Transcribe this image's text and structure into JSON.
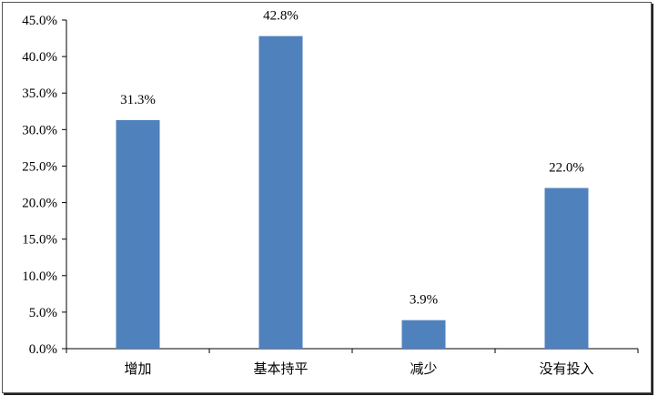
{
  "chart_data": {
    "type": "bar",
    "categories": [
      "增加",
      "基本持平",
      "减少",
      "没有投入"
    ],
    "values": [
      31.3,
      42.8,
      3.9,
      22.0
    ],
    "data_labels": [
      "31.3%",
      "42.8%",
      "3.9%",
      "22.0%"
    ],
    "title": "",
    "xlabel": "",
    "ylabel": "",
    "ylim": [
      0,
      45
    ],
    "yticks": [
      "0.0%",
      "5.0%",
      "10.0%",
      "15.0%",
      "20.0%",
      "25.0%",
      "30.0%",
      "35.0%",
      "40.0%",
      "45.0%"
    ],
    "grid": false,
    "legend": "none",
    "bar_color": "#4F81BD"
  }
}
